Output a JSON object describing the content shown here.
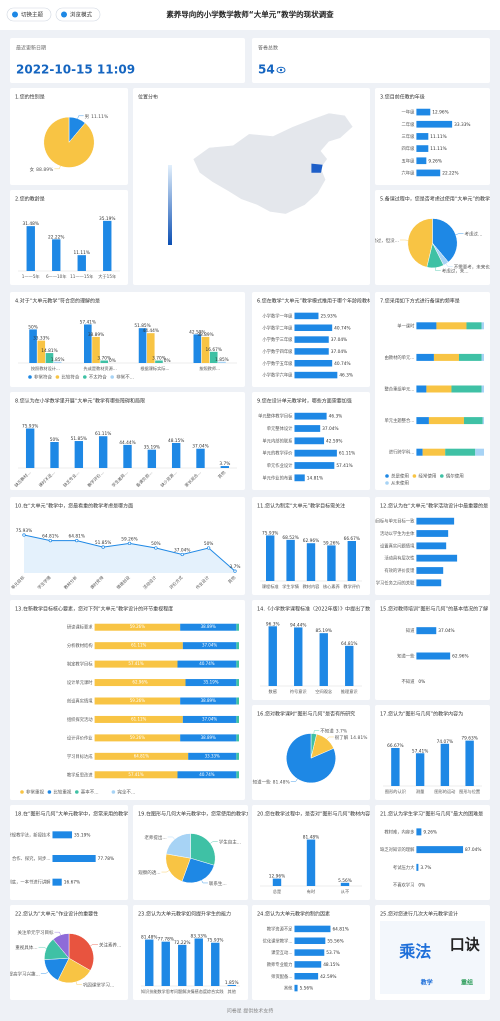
{
  "header": {
    "buttons": [
      "切换主题",
      "浏览模式"
    ],
    "title": "素养导向的小学数学教师“大单元”教学的现状调查"
  },
  "stats": [
    {
      "label": "最近更新日期",
      "value": "2022-10-15 11:09"
    },
    {
      "label": "答卷总数",
      "value": 54
    }
  ],
  "footer": "问卷星 提供技术支持",
  "chart_data": [
    {
      "type": "pie",
      "title": "1.您的性别是",
      "categories": [
        "男",
        "女"
      ],
      "values": [
        11.11,
        88.89
      ],
      "value_labels": [
        "11.11%",
        "88.89%"
      ],
      "colors": [
        "#1e88e5",
        "#f8c444"
      ]
    },
    {
      "type": "map",
      "title": "位置分布"
    },
    {
      "type": "barh",
      "title": "3.您目前任教的年级",
      "categories": [
        "一年级",
        "二年级",
        "三年级",
        "四年级",
        "五年级",
        "六年级"
      ],
      "values": [
        12.96,
        33.33,
        11.11,
        11.11,
        9.26,
        22.22
      ],
      "value_labels": [
        "12.96%",
        "33.33%",
        "11.11%",
        "11.11%",
        "9.26%",
        "22.22%"
      ],
      "color": "#1e88e5",
      "xlim": [
        0,
        50
      ]
    },
    {
      "type": "bar",
      "title": "2.您的教龄是",
      "categories": [
        "1——5年",
        "6——10年",
        "11——15年",
        "大于15年"
      ],
      "values": [
        31.48,
        22.22,
        11.11,
        35.19
      ],
      "value_labels": [
        "31.48%",
        "22.22%",
        "11.11%",
        "35.19%"
      ],
      "color": "#1e88e5",
      "ylim": [
        0,
        40
      ]
    },
    {
      "type": "pie",
      "title": "5.备课过程中，您是否考虑过使用“大单元”的教学设计",
      "categories": [
        "考虑过...",
        "不需要考，未来也...",
        "考虑过，未...",
        "考虑过，但没..."
      ],
      "values": [
        38.89,
        3.7,
        11.11,
        46.3
      ],
      "colors": [
        "#1e88e5",
        "#a7d3f5",
        "#3fc1a5",
        "#f8c444"
      ]
    },
    {
      "type": "bar",
      "title": "4.对于“大单元教学”符合您的理解的是",
      "categories": [
        "按照教材设计...",
        "先或是教材资源...",
        "根据课标实际...",
        "按照教师..."
      ],
      "ylim": [
        0,
        70
      ],
      "series": [
        {
          "name": "非常符合",
          "color": "#1e88e5",
          "values": [
            50,
            57.41,
            51.85,
            42.59
          ],
          "value_labels": [
            "50%",
            "57.41%",
            "51.85%",
            "42.59%"
          ]
        },
        {
          "name": "比较符合",
          "color": "#f8c444",
          "values": [
            33.33,
            38.89,
            44.44,
            38.89
          ],
          "value_labels": [
            "33.33%",
            "38.89%",
            "44.44%",
            "38.89%"
          ]
        },
        {
          "name": "不太符合",
          "color": "#3fc1a5",
          "values": [
            14.81,
            3.7,
            3.7,
            16.67
          ],
          "value_labels": [
            "14.81%",
            "3.70%",
            "3.70%",
            "16.67%"
          ]
        },
        {
          "name": "非常不...",
          "color": "#a7d3f5",
          "values": [
            1.85,
            0,
            0,
            1.85
          ],
          "value_labels": [
            "1.85%",
            "0%",
            "0%",
            "1.85%"
          ]
        }
      ]
    },
    {
      "type": "barh",
      "title": "6.您在教学“大单元”教学模式推用于哪个年龄段教材",
      "categories": [
        "小学数学一年级",
        "小学数学二年级",
        "小学数学三年级",
        "小学数学四年级",
        "小学数学五年级",
        "小学数学六年级"
      ],
      "values": [
        25.93,
        40.74,
        37.04,
        37.04,
        40.74,
        46.3
      ],
      "value_labels": [
        "25.93%",
        "40.74%",
        "37.04%",
        "37.04%",
        "40.74%",
        "46.3%"
      ],
      "color": "#1e88e5",
      "xlim": [
        0,
        60
      ]
    },
    {
      "type": "barh",
      "title": "7.您采用如下方式进行备课的频率是",
      "stacked": true,
      "categories": [
        "单一课时",
        "由教材的单元...",
        "整合重组单元...",
        "单元主题整合...",
        "进行跨学科..."
      ],
      "xlim": [
        0,
        100
      ],
      "series": [
        {
          "name": "总是使用",
          "color": "#1e88e5",
          "values": [
            29.63,
            25.93,
            14.81,
            18.52,
            9.26
          ]
        },
        {
          "name": "经常使用",
          "color": "#f8c444",
          "values": [
            44.44,
            37.04,
            37.04,
            51.85,
            33.33
          ]
        },
        {
          "name": "偶尔使用",
          "color": "#3fc1a5",
          "values": [
            22.22,
            33.33,
            44.44,
            27.78,
            44.44
          ]
        },
        {
          "name": "从未使用",
          "color": "#a7d3f5",
          "values": [
            3.7,
            3.7,
            3.7,
            1.85,
            12.96
          ]
        }
      ]
    },
    {
      "type": "bar",
      "title": "8.您认为在小学数学里开展“大单元”教学有哪些障碍和局限",
      "categories": [
        "缺乏教材...",
        "课时不足...",
        "缺乏专业...",
        "教学评价...",
        "学生差异...",
        "备课负担...",
        "缺少资源...",
        "家长观念...",
        "其他"
      ],
      "values": [
        75.93,
        50,
        51.85,
        61.11,
        44.44,
        35.19,
        48.15,
        37.04,
        3.7
      ],
      "value_labels": [
        "75.93%",
        "50%",
        "51.85%",
        "61.11%",
        "44.44%",
        "35.19%",
        "48.15%",
        "37.04%",
        "3.7%"
      ],
      "color": "#1e88e5",
      "ylim": [
        0,
        100
      ]
    },
    {
      "type": "barh",
      "title": "9.您在设计单元教学时，哪些方面需要加强",
      "categories": [
        "单元整体教学目标",
        "单元整体设计",
        "单元内部的联系",
        "单元的教学评价",
        "单元作业设计",
        "单元作业的布置"
      ],
      "values": [
        46.3,
        37.04,
        42.59,
        61.11,
        57.41,
        14.81
      ],
      "value_labels": [
        "46.3%",
        "37.04%",
        "42.59%",
        "61.11%",
        "57.41%",
        "14.81%"
      ],
      "color": "#1e88e5",
      "xlim": [
        0,
        80
      ]
    },
    {
      "type": "line",
      "title": "10.在“大单元”教学中，您最看重的教学考虑是哪方面",
      "categories": [
        "单元目标",
        "学生学情",
        "教材分析",
        "课时安排",
        "情境创设",
        "活动设计",
        "评价方式",
        "作业设计",
        "其他"
      ],
      "values": [
        75.93,
        64.81,
        64.81,
        51.85,
        59.26,
        50,
        37.04,
        50,
        3.7
      ],
      "value_labels": [
        "75.93%",
        "64.81%",
        "64.81%",
        "51.85%",
        "59.26%",
        "50%",
        "37.04%",
        "50%",
        "3.7%"
      ],
      "color": "#1e88e5",
      "ylim": [
        0,
        100
      ]
    },
    {
      "type": "bar",
      "title": "11.您认为制定“大单元”教学目标需关注",
      "categories": [
        "课程标准",
        "学生学情",
        "教材内容",
        "核心素养",
        "教学评价"
      ],
      "values": [
        75.93,
        68.52,
        62.96,
        59.26,
        66.67
      ],
      "value_labels": [
        "75.93%",
        "68.52%",
        "62.96%",
        "59.26%",
        "66.67%"
      ],
      "color": "#1e88e5",
      "ylim": [
        0,
        100
      ]
    },
    {
      "type": "barh",
      "title": "12.您认为在“大单元”教学活动设计中最重要的是",
      "categories": [
        "活动目标与单元目标一致",
        "活动以学生为主体",
        "设置真实问题情境",
        "活动具有层次性",
        "有效的评价反馈",
        "学习任务之间的关联"
      ],
      "values": [
        70.37,
        59.26,
        55.56,
        75.93,
        50,
        46.3
      ],
      "color": "#1e88e5",
      "xlim": [
        0,
        100
      ]
    },
    {
      "type": "barh",
      "title": "13.在新教学目标核心要素，您对下列“大单元”教学设计的环节重视程度",
      "stacked": true,
      "categories": [
        "研读课标要求",
        "分析教材结构",
        "制定教学目标",
        "设计单元课时",
        "创设真实情境",
        "组织探究活动",
        "设计评价作业",
        "学习目标达成",
        "教学反思改进"
      ],
      "xlim": [
        0,
        100
      ],
      "series": [
        {
          "name": "非常重视",
          "color": "#f8c444",
          "values": [
            59.26,
            61.11,
            57.41,
            62.96,
            59.26,
            61.11,
            59.26,
            64.81,
            57.41
          ],
          "value_labels": [
            "59.26%",
            "61.11%",
            "57.41%",
            "62.96%",
            "59.26%",
            "61.11%",
            "59.26%",
            "64.81%",
            "57.41%"
          ]
        },
        {
          "name": "比较重视",
          "color": "#1e88e5",
          "values": [
            38.89,
            37.04,
            40.74,
            35.19,
            38.89,
            37.04,
            38.89,
            33.33,
            40.74
          ],
          "value_labels": [
            "38.89%",
            "37.04%",
            "40.74%",
            "35.19%",
            "38.89%",
            "37.04%",
            "38.89%",
            "33.33%",
            "40.74%"
          ]
        },
        {
          "name": "基本不...",
          "color": "#3fc1a5",
          "values": [
            1.85,
            1.85,
            1.85,
            1.85,
            1.85,
            1.85,
            1.85,
            1.85,
            1.85
          ]
        },
        {
          "name": "完全不...",
          "color": "#a7d3f5",
          "values": [
            0,
            0,
            0,
            0,
            0,
            0,
            0,
            0,
            0
          ]
        }
      ]
    },
    {
      "type": "bar",
      "title": "14.《小学数学课程标准（2022年版）》中提出了数学核心素养",
      "categories": [
        "数感",
        "符号意识",
        "空间观念",
        "推理意识"
      ],
      "values": [
        96.3,
        94.44,
        85.19,
        64.81
      ],
      "value_labels": [
        "96.3%",
        "94.44%",
        "85.19%",
        "64.81%"
      ],
      "color": "#1e88e5",
      "ylim": [
        0,
        100
      ]
    },
    {
      "type": "barh",
      "title": "15.您对教师培训“图形与几何”的基本情况的了解",
      "categories": [
        "知道",
        "知道一些",
        "不知道"
      ],
      "values": [
        37.04,
        62.96,
        0
      ],
      "value_labels": [
        "37.04%",
        "62.96%",
        "0%"
      ],
      "color": "#1e88e5",
      "xlim": [
        0,
        100
      ]
    },
    {
      "type": "pie",
      "title": "16.您对教学课时“图形与几何”是否有所研究",
      "categories": [
        "不知道",
        "很了解",
        "知道一些"
      ],
      "values": [
        3.7,
        14.81,
        81.48
      ],
      "value_labels": [
        "3.7%",
        "14.81%",
        "81.48%"
      ],
      "colors": [
        "#3fc1a5",
        "#f8c444",
        "#1e88e5"
      ]
    },
    {
      "type": "bar",
      "title": "17.您认为“图形与几何”的教学内容为",
      "categories": [
        "图形的认识",
        "测量",
        "图形的运动",
        "图形与位置"
      ],
      "values": [
        66.67,
        57.41,
        74.07,
        79.63
      ],
      "value_labels": [
        "66.67%",
        "57.41%",
        "74.07%",
        "79.63%"
      ],
      "color": "#1e88e5",
      "ylim": [
        0,
        100
      ]
    },
    {
      "type": "barh",
      "title": "18.在“图形与几何”大单元教学中，您常采用的教学方法",
      "categories": [
        "常规教学法，新授技术",
        "合作、探究，同步...",
        "一次到底，一本书进行讲解"
      ],
      "values": [
        35.19,
        77.78,
        16.67
      ],
      "value_labels": [
        "35.19%",
        "77.78%",
        "16.67%"
      ],
      "color": "#1e88e5",
      "xlim": [
        0,
        100
      ]
    },
    {
      "type": "pie",
      "title": "19.在图形与几何大单元教学中，您常使用的教学方式",
      "categories": [
        "学生自主...",
        "联系生...",
        "观察的透...",
        "老师提出..."
      ],
      "values": [
        29.63,
        25.93,
        22.22,
        22.22
      ],
      "colors": [
        "#3fc1a5",
        "#1e88e5",
        "#f8c444",
        "#a7d3f5"
      ]
    },
    {
      "type": "bar",
      "title": "20.您在教学过程中，是否对“图形与几何”教材内容有所研究",
      "categories": [
        "总是",
        "有时",
        "从不"
      ],
      "values": [
        12.96,
        81.48,
        5.56
      ],
      "value_labels": [
        "12.96%",
        "81.48%",
        "5.56%"
      ],
      "color": "#1e88e5",
      "ylim": [
        0,
        100
      ]
    },
    {
      "type": "barh",
      "title": "21.您认为学生学习“图形与几何”最大的困难是",
      "categories": [
        "教材难，内容多",
        "缺乏对知识的理解",
        "考试压力大",
        "不喜欢学习"
      ],
      "values": [
        9.26,
        87.04,
        3.7,
        0
      ],
      "value_labels": [
        "9.26%",
        "87.04%",
        "3.7%",
        "0%"
      ],
      "color": "#1e88e5",
      "xlim": [
        0,
        100
      ]
    },
    {
      "type": "pie",
      "title": "22.您认为“大单元”作业设计的重要性",
      "categories": [
        "关注素养...",
        "巩固课堂学习...",
        "提高学习兴趣...",
        "重视具体...",
        "关注单元学习目标"
      ],
      "values": [
        33.33,
        24.07,
        16.67,
        14.81,
        11.11
      ],
      "colors": [
        "#e8543f",
        "#f8c444",
        "#1e88e5",
        "#3fc1a5",
        "#8e6bd8"
      ]
    },
    {
      "type": "bar",
      "title": "23.您认为大单元教学如何提升学生的能力",
      "categories": [
        "知识技能",
        "数学思考",
        "问题解决",
        "情感态度",
        "综合实践",
        "其他"
      ],
      "values": [
        81.48,
        77.78,
        72.22,
        83.33,
        75.93,
        1.85
      ],
      "value_labels": [
        "81.48%",
        "77.78%",
        "72.22%",
        "83.33%",
        "75.93%",
        "1.85%"
      ],
      "color": "#1e88e5",
      "ylim": [
        0,
        100
      ]
    },
    {
      "type": "barh",
      "title": "24.您认为大单元教学的制约因素",
      "categories": [
        "教学资源不足",
        "优化课堂教学...",
        "课堂互动...",
        "教师专业能力",
        "师资配备...",
        "其他"
      ],
      "values": [
        64.81,
        55.56,
        53.7,
        48.15,
        42.59,
        5.56
      ],
      "value_labels": [
        "64.81%",
        "55.56%",
        "53.7%",
        "48.15%",
        "42.59%",
        "5.56%"
      ],
      "color": "#1e88e5",
      "xlim": [
        0,
        100
      ]
    },
    {
      "type": "image",
      "title": "25.您对您进行几次大单元教学设计",
      "texts": [
        "乘法",
        "口诀",
        "教学",
        "重组"
      ]
    }
  ]
}
